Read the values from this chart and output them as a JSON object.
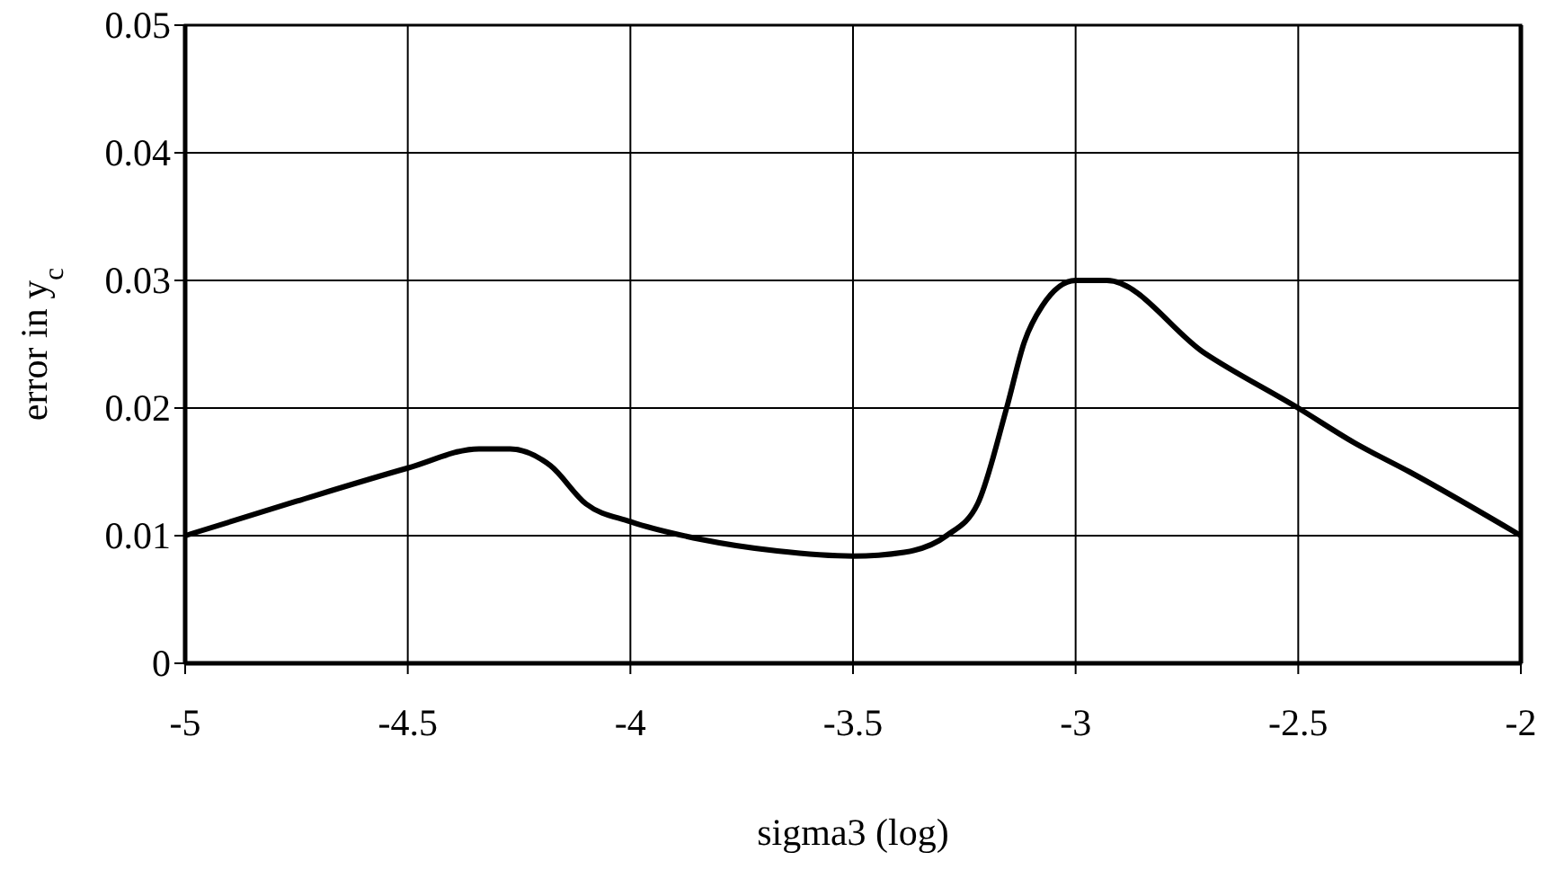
{
  "chart_data": {
    "type": "line",
    "xlabel": "sigma3 (log)",
    "ylabel": "error in y$_{c}$",
    "series": [
      {
        "color": "#000000",
        "x": [
          -5,
          -4.75,
          -4.5,
          -4.34,
          -4.27,
          -4.18,
          -4.1,
          -4,
          -3.84,
          -3.67,
          -3.5,
          -3.385,
          -3.29,
          -3.22,
          -3.155,
          -3.115,
          -3.075,
          -3.0,
          -2.93,
          -2.71,
          -2.5,
          -2.375,
          -2.25,
          -2
        ],
        "values": [
          0.01,
          0.0127,
          0.0153,
          0.0168,
          0.0168,
          0.0155,
          0.0125,
          0.0111,
          0.0097,
          0.0088,
          0.0084,
          0.0087,
          0.01,
          0.0125,
          0.02,
          0.0252,
          0.028,
          0.03,
          0.03,
          0.0243,
          0.02,
          0.0173,
          0.015,
          0.01
        ]
      }
    ],
    "xlim": [
      -5,
      -2
    ],
    "xticks": [
      -5,
      -4.5,
      -4,
      -3.5,
      -3,
      -2.5,
      -2
    ],
    "ylim": [
      0,
      0.05
    ],
    "yticks": [
      0,
      0.01,
      0.02,
      0.03,
      0.04,
      0.05
    ],
    "grid": true,
    "marker": "none",
    "line_style": "solid"
  }
}
